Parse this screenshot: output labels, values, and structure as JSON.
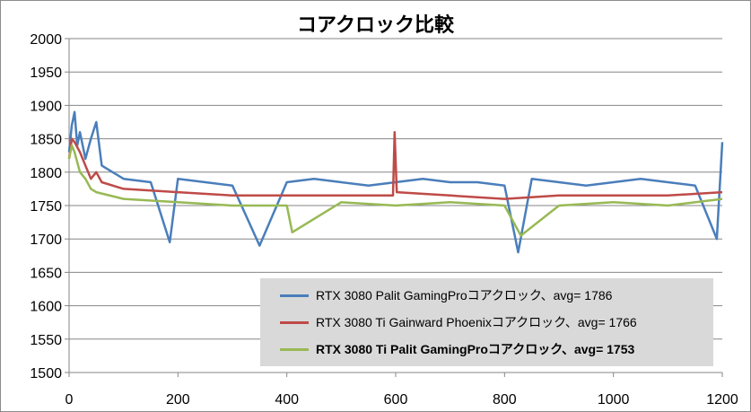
{
  "chart_data": {
    "type": "line",
    "title": "コアクロック比較",
    "xlabel": "",
    "ylabel": "",
    "xlim": [
      0,
      1200
    ],
    "ylim": [
      1500,
      2000
    ],
    "x_ticks": [
      0,
      200,
      400,
      600,
      800,
      1000,
      1200
    ],
    "y_ticks": [
      1500,
      1550,
      1600,
      1650,
      1700,
      1750,
      1800,
      1850,
      1900,
      1950,
      2000
    ],
    "grid": "horizontal",
    "legend_position": "bottom-right",
    "series": [
      {
        "name": "RTX 3080 Palit GamingProコアクロック、avg= 1786",
        "color": "#4a7ebb",
        "x": [
          0,
          5,
          10,
          15,
          20,
          30,
          40,
          50,
          60,
          80,
          100,
          150,
          185,
          200,
          250,
          300,
          350,
          400,
          450,
          500,
          550,
          600,
          650,
          700,
          750,
          800,
          825,
          850,
          900,
          950,
          1000,
          1050,
          1100,
          1150,
          1190,
          1200
        ],
        "values": [
          1830,
          1870,
          1890,
          1840,
          1860,
          1820,
          1850,
          1875,
          1810,
          1800,
          1790,
          1785,
          1695,
          1790,
          1785,
          1780,
          1690,
          1785,
          1790,
          1785,
          1780,
          1785,
          1790,
          1785,
          1785,
          1780,
          1680,
          1790,
          1785,
          1780,
          1785,
          1790,
          1785,
          1780,
          1700,
          1845
        ]
      },
      {
        "name": "RTX 3080 Ti Gainward Phoenixコアクロック、avg= 1766",
        "color": "#be4b48",
        "x": [
          0,
          5,
          10,
          20,
          30,
          40,
          50,
          60,
          100,
          200,
          300,
          400,
          500,
          595,
          598,
          602,
          700,
          800,
          900,
          1000,
          1100,
          1200
        ],
        "values": [
          1820,
          1850,
          1845,
          1830,
          1810,
          1790,
          1800,
          1785,
          1775,
          1770,
          1765,
          1765,
          1765,
          1765,
          1860,
          1770,
          1765,
          1760,
          1765,
          1765,
          1765,
          1770
        ]
      },
      {
        "name": "RTX 3080 Ti Palit GamingProコアクロック、avg= 1753",
        "color": "#98b954",
        "x": [
          0,
          5,
          10,
          20,
          30,
          40,
          50,
          100,
          200,
          300,
          400,
          410,
          500,
          600,
          700,
          800,
          830,
          900,
          1000,
          1100,
          1200
        ],
        "values": [
          1820,
          1840,
          1830,
          1800,
          1790,
          1775,
          1770,
          1760,
          1755,
          1750,
          1750,
          1710,
          1755,
          1750,
          1755,
          1750,
          1705,
          1750,
          1755,
          1750,
          1760
        ]
      }
    ]
  }
}
